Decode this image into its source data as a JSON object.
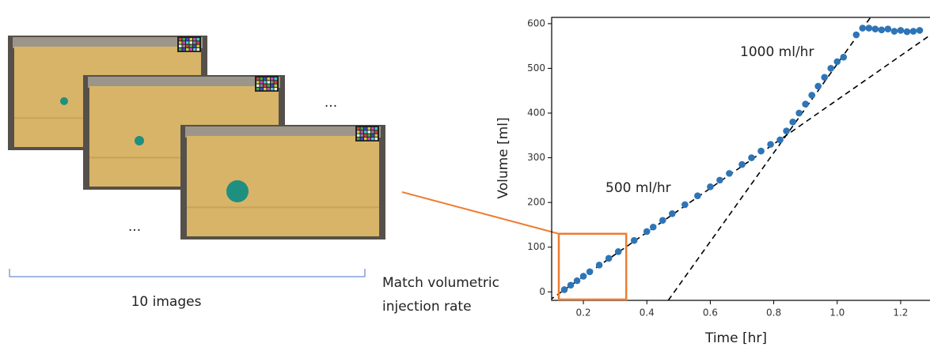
{
  "chart_data": {
    "type": "scatter",
    "x_label": "Time [hr]",
    "y_label": "Volume [ml]",
    "x": [
      0.14,
      0.16,
      0.18,
      0.2,
      0.22,
      0.25,
      0.28,
      0.31,
      0.36,
      0.4,
      0.42,
      0.45,
      0.48,
      0.52,
      0.56,
      0.6,
      0.63,
      0.66,
      0.7,
      0.73,
      0.76,
      0.79,
      0.82,
      0.84,
      0.86,
      0.88,
      0.9,
      0.92,
      0.94,
      0.96,
      0.98,
      1.0,
      1.02,
      1.06,
      1.08,
      1.1,
      1.12,
      1.14,
      1.16,
      1.18,
      1.2,
      1.22,
      1.24,
      1.26
    ],
    "values": [
      5,
      15,
      25,
      35,
      45,
      60,
      75,
      90,
      115,
      135,
      145,
      160,
      175,
      195,
      215,
      235,
      250,
      265,
      285,
      300,
      315,
      330,
      340,
      360,
      380,
      400,
      420,
      440,
      460,
      480,
      500,
      515,
      525,
      575,
      590,
      590,
      588,
      586,
      588,
      583,
      585,
      582,
      583,
      585
    ],
    "color": "#2e75b6",
    "xlim": [
      0.1,
      1.2925
    ],
    "ylim": [
      -19,
      614
    ],
    "xticks": [
      0.2,
      0.4,
      0.6,
      0.8,
      {
        "value": 1,
        "label": "1.0"
      },
      1.2
    ],
    "yticks": [
      0,
      100,
      200,
      300,
      400,
      500,
      600
    ],
    "fit_lines": [
      {
        "x": [
          0.0925,
          1.2925
        ],
        "y": [
          -19,
          574
        ]
      },
      {
        "x": [
          0.4675,
          1.105
        ],
        "y": [
          -19,
          614
        ]
      }
    ],
    "annotations": [
      "1000 ml/hr",
      "500 ml/hr"
    ],
    "highlight": {
      "x": [
        0.1225,
        0.335
      ],
      "y": [
        -17,
        130
      ],
      "color": "#ed7d31"
    }
  },
  "left_panel": {
    "ellipsis": [
      "...",
      "...",
      "..."
    ],
    "caption": "10 images"
  },
  "connector_label": [
    "Match volumetric",
    "injection rate"
  ]
}
